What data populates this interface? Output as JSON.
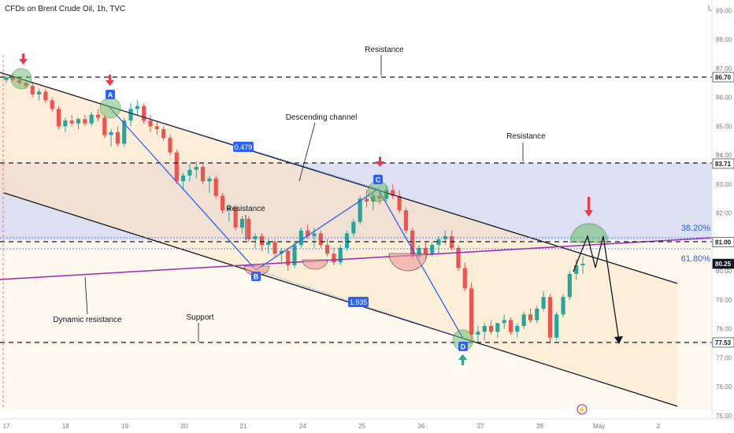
{
  "header": {
    "title": "CFDs on Brent Crude Oil, 1h, TVC",
    "currency": "USD"
  },
  "chart_data": {
    "type": "candlestick",
    "y_axis": {
      "min": 75,
      "max": 89,
      "ticks": [
        "89.00",
        "88.00",
        "87.00",
        "86.00",
        "85.00",
        "84.00",
        "83.00",
        "82.00",
        "81.00",
        "80.00",
        "79.00",
        "78.00",
        "77.00",
        "76.00",
        "75.00"
      ]
    },
    "x_axis": {
      "ticks": [
        "17",
        "18",
        "19",
        "20",
        "21",
        "24",
        "25",
        "26",
        "27",
        "28",
        "May",
        "2"
      ]
    },
    "price_labels": [
      {
        "value": "86.70",
        "price": 86.7,
        "color": "#131722"
      },
      {
        "value": "83.71",
        "price": 83.71,
        "color": "#131722"
      },
      {
        "value": "81.00",
        "price": 81.0,
        "color": "#131722"
      },
      {
        "value": "80.25",
        "price": 80.25,
        "color": "#ffffff"
      },
      {
        "value": "77.53",
        "price": 77.53,
        "color": "#131722"
      }
    ],
    "horizontal_levels": [
      86.7,
      83.71,
      81.0,
      77.53
    ],
    "fib_levels": [
      {
        "label": "38.20%",
        "price": 81.2
      },
      {
        "label": "61.80%",
        "price": 80.45
      }
    ],
    "annotations": [
      "Resistance",
      "Resistance",
      "Resistance",
      "Descending channel",
      "Dynamic resistance",
      "Support"
    ],
    "pattern_points": [
      "A",
      "B",
      "C",
      "D"
    ],
    "ratios": [
      "0.479",
      "1.935"
    ],
    "candles": [
      [
        86.6,
        86.75,
        86.5,
        86.7
      ],
      [
        86.7,
        86.8,
        86.55,
        86.6
      ],
      [
        86.6,
        86.7,
        86.4,
        86.5
      ],
      [
        86.5,
        86.6,
        86.3,
        86.4
      ],
      [
        86.4,
        86.5,
        86.0,
        86.1
      ],
      [
        86.1,
        86.3,
        85.9,
        86.2
      ],
      [
        86.2,
        86.3,
        85.8,
        85.9
      ],
      [
        85.9,
        86.0,
        85.5,
        85.6
      ],
      [
        85.6,
        85.7,
        84.9,
        85.0
      ],
      [
        85.0,
        85.3,
        84.8,
        85.2
      ],
      [
        85.2,
        85.4,
        85.0,
        85.1
      ],
      [
        85.1,
        85.3,
        84.9,
        85.25
      ],
      [
        85.25,
        85.4,
        85.0,
        85.1
      ],
      [
        85.1,
        85.5,
        85.0,
        85.4
      ],
      [
        85.4,
        85.6,
        85.2,
        85.3
      ],
      [
        85.3,
        85.4,
        84.6,
        84.7
      ],
      [
        84.7,
        84.9,
        84.3,
        84.8
      ],
      [
        84.8,
        85.0,
        84.3,
        84.4
      ],
      [
        84.4,
        85.3,
        84.3,
        85.2
      ],
      [
        85.2,
        85.8,
        85.0,
        85.6
      ],
      [
        85.6,
        85.9,
        85.4,
        85.7
      ],
      [
        85.7,
        85.8,
        85.1,
        85.2
      ],
      [
        85.2,
        85.4,
        84.8,
        85.0
      ],
      [
        85.0,
        85.2,
        84.7,
        84.9
      ],
      [
        84.9,
        85.0,
        84.5,
        84.6
      ],
      [
        84.6,
        84.7,
        84.0,
        84.1
      ],
      [
        84.1,
        84.2,
        83.0,
        83.1
      ],
      [
        83.1,
        83.4,
        82.8,
        83.3
      ],
      [
        83.3,
        83.7,
        83.1,
        83.5
      ],
      [
        83.5,
        83.8,
        83.2,
        83.6
      ],
      [
        83.6,
        83.7,
        83.0,
        83.1
      ],
      [
        83.1,
        83.3,
        82.7,
        83.2
      ],
      [
        83.2,
        83.3,
        82.5,
        82.6
      ],
      [
        82.6,
        82.7,
        82.0,
        82.1
      ],
      [
        82.1,
        82.3,
        81.7,
        82.2
      ],
      [
        82.2,
        82.3,
        81.4,
        81.5
      ],
      [
        81.5,
        81.9,
        81.3,
        81.8
      ],
      [
        81.8,
        81.9,
        81.0,
        81.1
      ],
      [
        81.1,
        81.3,
        80.8,
        81.2
      ],
      [
        81.2,
        81.3,
        80.7,
        80.9
      ],
      [
        80.9,
        81.1,
        80.6,
        81.0
      ],
      [
        81.0,
        81.1,
        80.5,
        80.6
      ],
      [
        80.6,
        80.8,
        80.3,
        80.7
      ],
      [
        80.7,
        80.8,
        80.0,
        80.2
      ],
      [
        80.2,
        81.0,
        80.1,
        80.9
      ],
      [
        80.9,
        81.5,
        80.8,
        81.4
      ],
      [
        81.4,
        81.6,
        81.1,
        81.2
      ],
      [
        81.2,
        81.5,
        80.8,
        81.3
      ],
      [
        81.3,
        81.4,
        80.8,
        80.9
      ],
      [
        80.9,
        81.1,
        80.5,
        80.6
      ],
      [
        80.6,
        80.8,
        80.2,
        80.3
      ],
      [
        80.3,
        80.9,
        80.2,
        80.8
      ],
      [
        80.8,
        81.4,
        80.7,
        81.3
      ],
      [
        81.3,
        81.8,
        81.2,
        81.7
      ],
      [
        81.7,
        82.6,
        81.6,
        82.5
      ],
      [
        82.5,
        82.8,
        82.2,
        82.4
      ],
      [
        82.4,
        82.7,
        82.1,
        82.6
      ],
      [
        82.6,
        82.8,
        82.3,
        82.5
      ],
      [
        82.5,
        82.9,
        82.4,
        82.8
      ],
      [
        82.8,
        83.0,
        82.5,
        82.6
      ],
      [
        82.6,
        82.8,
        82.0,
        82.1
      ],
      [
        82.1,
        82.2,
        81.3,
        81.4
      ],
      [
        81.4,
        81.5,
        80.4,
        80.5
      ],
      [
        80.5,
        80.9,
        80.3,
        80.8
      ],
      [
        80.8,
        81.0,
        80.4,
        80.6
      ],
      [
        80.6,
        81.0,
        80.5,
        80.9
      ],
      [
        80.9,
        81.2,
        80.6,
        81.1
      ],
      [
        81.1,
        81.4,
        80.9,
        81.2
      ],
      [
        81.2,
        81.4,
        80.7,
        80.8
      ],
      [
        80.8,
        80.9,
        80.0,
        80.1
      ],
      [
        80.1,
        80.3,
        79.3,
        79.4
      ],
      [
        79.4,
        79.6,
        77.6,
        77.8
      ],
      [
        77.8,
        78.1,
        77.5,
        77.9
      ],
      [
        77.9,
        78.2,
        77.6,
        78.1
      ],
      [
        78.1,
        78.3,
        77.8,
        77.9
      ],
      [
        77.9,
        78.2,
        77.7,
        78.2
      ],
      [
        78.2,
        78.5,
        78.0,
        78.3
      ],
      [
        78.3,
        78.4,
        77.8,
        77.9
      ],
      [
        77.9,
        78.2,
        77.7,
        78.1
      ],
      [
        78.1,
        78.6,
        78.0,
        78.5
      ],
      [
        78.5,
        78.7,
        78.2,
        78.3
      ],
      [
        78.3,
        78.8,
        78.2,
        78.7
      ],
      [
        78.7,
        79.3,
        78.6,
        79.1
      ],
      [
        79.1,
        79.2,
        77.5,
        77.7
      ],
      [
        77.7,
        78.6,
        77.6,
        78.5
      ],
      [
        78.5,
        79.2,
        78.4,
        79.1
      ],
      [
        79.1,
        80.0,
        79.0,
        79.9
      ],
      [
        79.9,
        80.4,
        79.7,
        80.2
      ],
      [
        80.2,
        80.5,
        79.9,
        80.25
      ]
    ]
  }
}
